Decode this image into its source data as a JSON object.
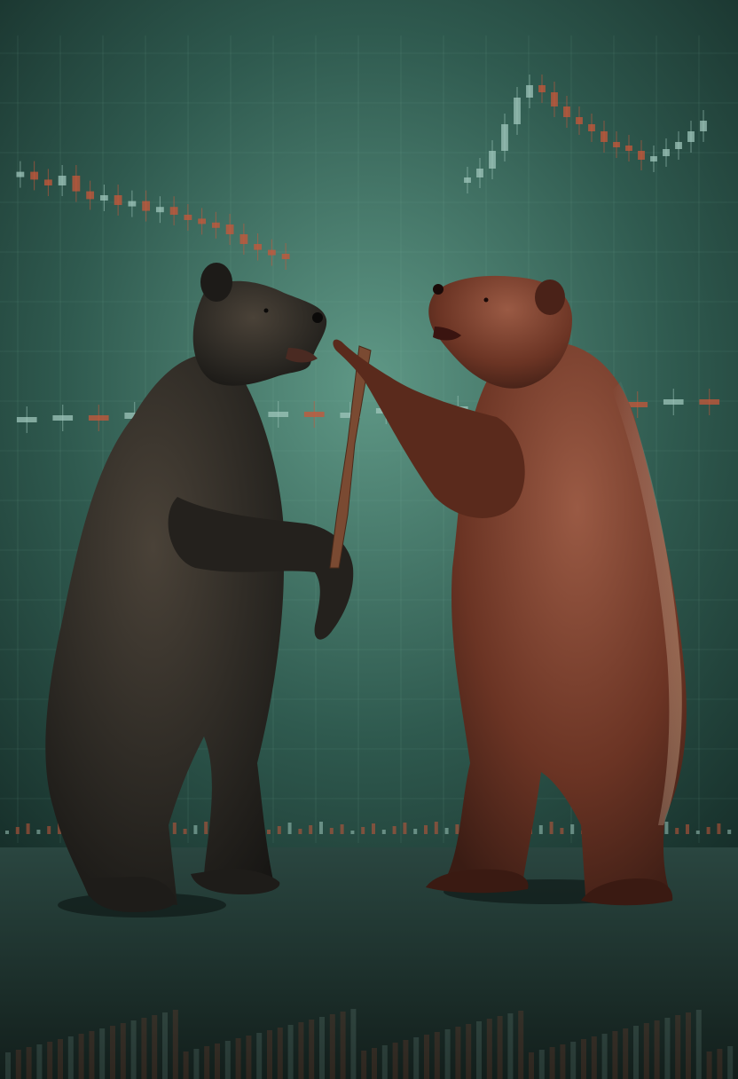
{
  "scene": {
    "description_icon": "two-bears-over-candlestick-chart",
    "subjects": [
      {
        "name": "dark-bear",
        "fur_color": "#2a2722",
        "highlight_color": "#4a4238"
      },
      {
        "name": "brown-bear",
        "fur_color": "#6b3424",
        "highlight_color": "#9a5a44"
      }
    ],
    "prop": {
      "name": "wooden-stick",
      "color": "#7a4a32"
    },
    "colors": {
      "backdrop_top": "#24453e",
      "backdrop_mid": "#5f9886",
      "backdrop_edge": "#1c3832",
      "floor": "#1e2f2b",
      "grid": "#8ec2b0",
      "candle_bear": "#c8573a",
      "candle_bull": "#9fc6bb"
    }
  },
  "chart_data": {
    "type": "candlestick",
    "series": [
      {
        "values": [
          62,
          58,
          55,
          60,
          52,
          48,
          50,
          45,
          47,
          42,
          44,
          40,
          38,
          36,
          35,
          30,
          25,
          22,
          20,
          18
        ]
      },
      {
        "values": [
          40,
          45,
          55,
          70,
          85,
          92,
          88,
          80,
          74,
          70,
          66,
          60,
          58,
          55,
          50,
          52,
          56,
          60,
          66,
          72
        ]
      },
      {
        "values": [
          30,
          32,
          28,
          35,
          31,
          34,
          30,
          36,
          33,
          35,
          40,
          38,
          42,
          39,
          45,
          43,
          47,
          46,
          50,
          48
        ]
      }
    ]
  }
}
